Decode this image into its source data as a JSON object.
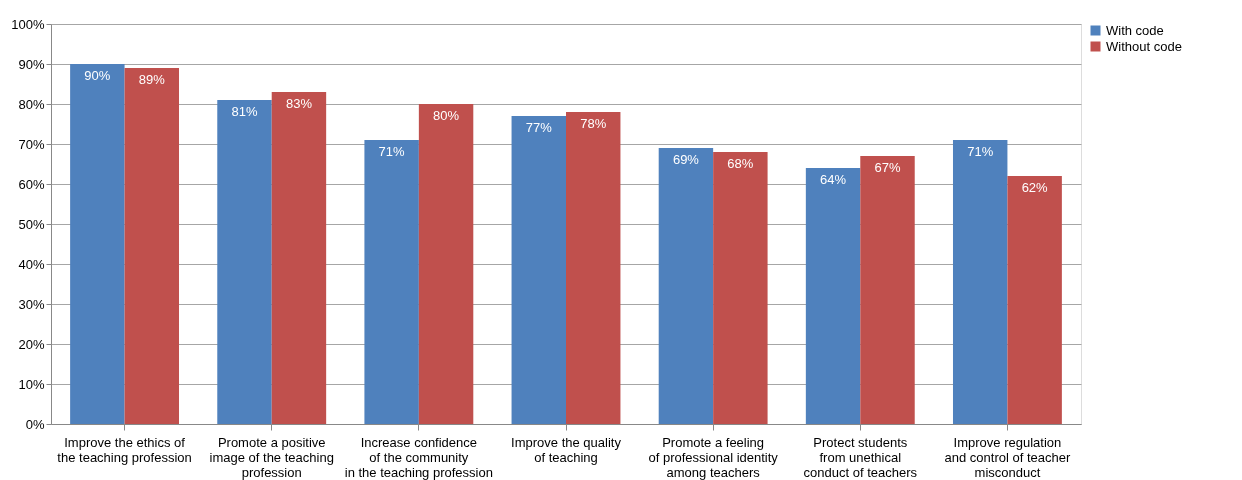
{
  "chart_data": {
    "type": "bar",
    "categories": [
      "Improve the ethics of\nthe teaching profession",
      "Promote a positive\nimage of the teaching\nprofession",
      "Increase confidence\nof the community\nin the teaching profession",
      "Improve the quality\nof teaching",
      "Promote a feeling\nof professional identity\namong teachers",
      "Protect students\nfrom unethical\nconduct of teachers",
      "Improve regulation\nand control of teacher\nmisconduct"
    ],
    "series": [
      {
        "name": "With code",
        "color": "#4f81bd",
        "values": [
          90,
          81,
          71,
          77,
          69,
          64,
          71
        ],
        "value_labels": [
          "90%",
          "81%",
          "71%",
          "77%",
          "69%",
          "64%",
          "71%"
        ]
      },
      {
        "name": "Without code",
        "color": "#c0504d",
        "values": [
          89,
          83,
          80,
          78,
          68,
          67,
          62
        ],
        "value_labels": [
          "89%",
          "83%",
          "80%",
          "78%",
          "68%",
          "67%",
          "62%"
        ]
      }
    ],
    "ylim": [
      0,
      100
    ],
    "yticks": [
      {
        "value": 0,
        "label": "0%"
      },
      {
        "value": 10,
        "label": "10%"
      },
      {
        "value": 20,
        "label": "20%"
      },
      {
        "value": 30,
        "label": "30%"
      },
      {
        "value": 40,
        "label": "40%"
      },
      {
        "value": 50,
        "label": "50%"
      },
      {
        "value": 60,
        "label": "60%"
      },
      {
        "value": 70,
        "label": "70%"
      },
      {
        "value": 80,
        "label": "80%"
      },
      {
        "value": 90,
        "label": "90%"
      },
      {
        "value": 100,
        "label": "100%"
      }
    ],
    "grid": "y",
    "legend": "right"
  }
}
